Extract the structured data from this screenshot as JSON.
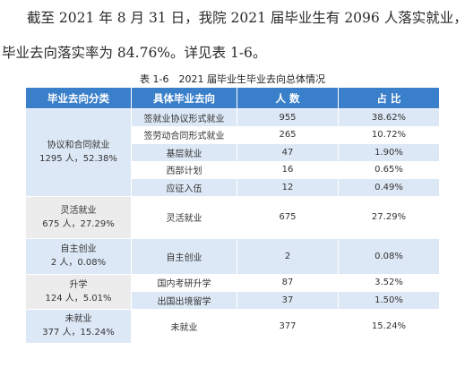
{
  "paragraph": {
    "line1": "截至 2021 年 8 月 31 日，我院 2021 届毕业生有 2096 人落实就业，",
    "line2": "毕业去向落实率为 84.76%。详见表 1-6。"
  },
  "table": {
    "caption": "表 1-6　2021 届毕业生毕业去向总体情况",
    "headers": [
      "毕业去向分类",
      "具体毕业去向",
      "人  数",
      "占  比"
    ],
    "groups": [
      {
        "name": "协议和合同就业",
        "summary": "1295 人，52.38%",
        "rows": [
          {
            "detail": "签就业协议形式就业",
            "count": "955",
            "ratio": "38.62%"
          },
          {
            "detail": "签劳动合同形式就业",
            "count": "265",
            "ratio": "10.72%"
          },
          {
            "detail": "基层就业",
            "count": "47",
            "ratio": "1.90%"
          },
          {
            "detail": "西部计划",
            "count": "16",
            "ratio": "0.65%"
          },
          {
            "detail": "应征入伍",
            "count": "12",
            "ratio": "0.49%"
          }
        ]
      },
      {
        "name": "灵活就业",
        "summary": "675 人，27.29%",
        "rows": [
          {
            "detail": "灵活就业",
            "count": "675",
            "ratio": "27.29%"
          }
        ]
      },
      {
        "name": "自主创业",
        "summary": "2 人，0.08%",
        "rows": [
          {
            "detail": "自主创业",
            "count": "2",
            "ratio": "0.08%"
          }
        ]
      },
      {
        "name": "升学",
        "summary": "124 人，5.01%",
        "rows": [
          {
            "detail": "国内考研升学",
            "count": "87",
            "ratio": "3.52%"
          },
          {
            "detail": "出国出境留学",
            "count": "37",
            "ratio": "1.50%"
          }
        ]
      },
      {
        "name": "未就业",
        "summary": "377 人，15.24%",
        "rows": [
          {
            "detail": "未就业",
            "count": "377",
            "ratio": "15.24%"
          }
        ]
      }
    ]
  },
  "colors": {
    "header_bg": "#3a7fc9",
    "category_bg": "#dde8f6",
    "row_gray": "#ececec"
  }
}
